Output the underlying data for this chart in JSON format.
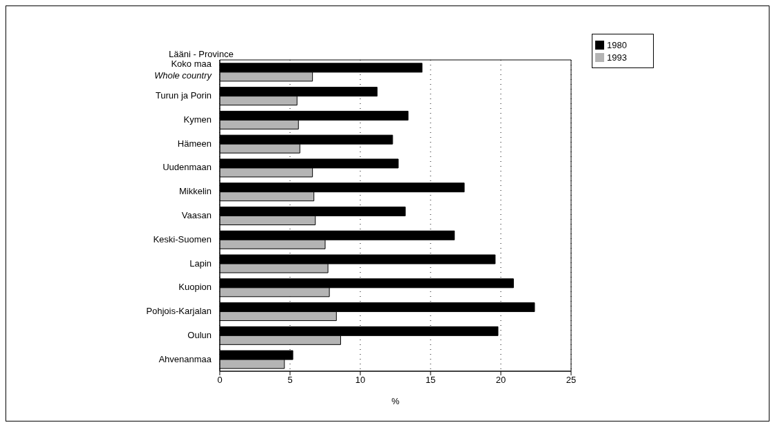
{
  "chart_data": {
    "type": "bar",
    "orientation": "horizontal",
    "ylabel": "Lääni - Province",
    "xlabel": "%",
    "categories": [
      "Koko maa\nWhole country",
      "Turun ja Porin",
      "Kymen",
      "Hämeen",
      "Uudenmaan",
      "Mikkelin",
      "Vaasan",
      "Keski-Suomen",
      "Lapin",
      "Kuopion",
      "Pohjois-Karjalan",
      "Oulun",
      "Ahvenanmaa"
    ],
    "series": [
      {
        "name": "1980",
        "color": "#000000",
        "values": [
          14.4,
          11.2,
          13.4,
          12.3,
          12.7,
          17.4,
          13.2,
          16.7,
          19.6,
          20.9,
          22.4,
          19.8,
          5.2
        ]
      },
      {
        "name": "1993",
        "color": "#b4b4b4",
        "values": [
          6.6,
          5.5,
          5.6,
          5.7,
          6.6,
          6.7,
          6.8,
          7.5,
          7.7,
          7.8,
          8.3,
          8.6,
          4.6
        ]
      }
    ],
    "xlim": [
      0,
      25
    ],
    "xticks": [
      0,
      5,
      10,
      15,
      20,
      25
    ],
    "grid": "x",
    "legend": "top right"
  }
}
